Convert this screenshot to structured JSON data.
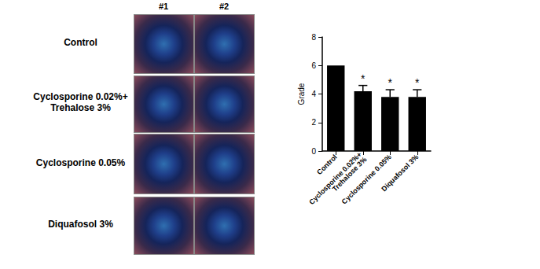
{
  "chart_data": {
    "type": "bar",
    "categories": [
      "Control",
      "Cyclosporine 0.02%+\nTrehalose 3%",
      "Cyclosporine 0.05%",
      "Diquafosol 3%"
    ],
    "values": [
      6,
      4.2,
      3.8,
      3.8
    ],
    "errors": [
      null,
      0.4,
      0.5,
      0.5
    ],
    "significance": [
      null,
      "*",
      "*",
      "*"
    ],
    "color": "#000000",
    "ylabel": "Grade",
    "ylim": [
      0,
      8
    ],
    "yticks": [
      0,
      2,
      4,
      6,
      8
    ],
    "grid": false
  },
  "panel": {
    "columns": [
      "#1",
      "#2"
    ],
    "rows": [
      "Control",
      "Cyclosporine 0.02%+\nTrehalose 3%",
      "Cyclosporine 0.05%",
      "Diquafosol 3%"
    ]
  }
}
